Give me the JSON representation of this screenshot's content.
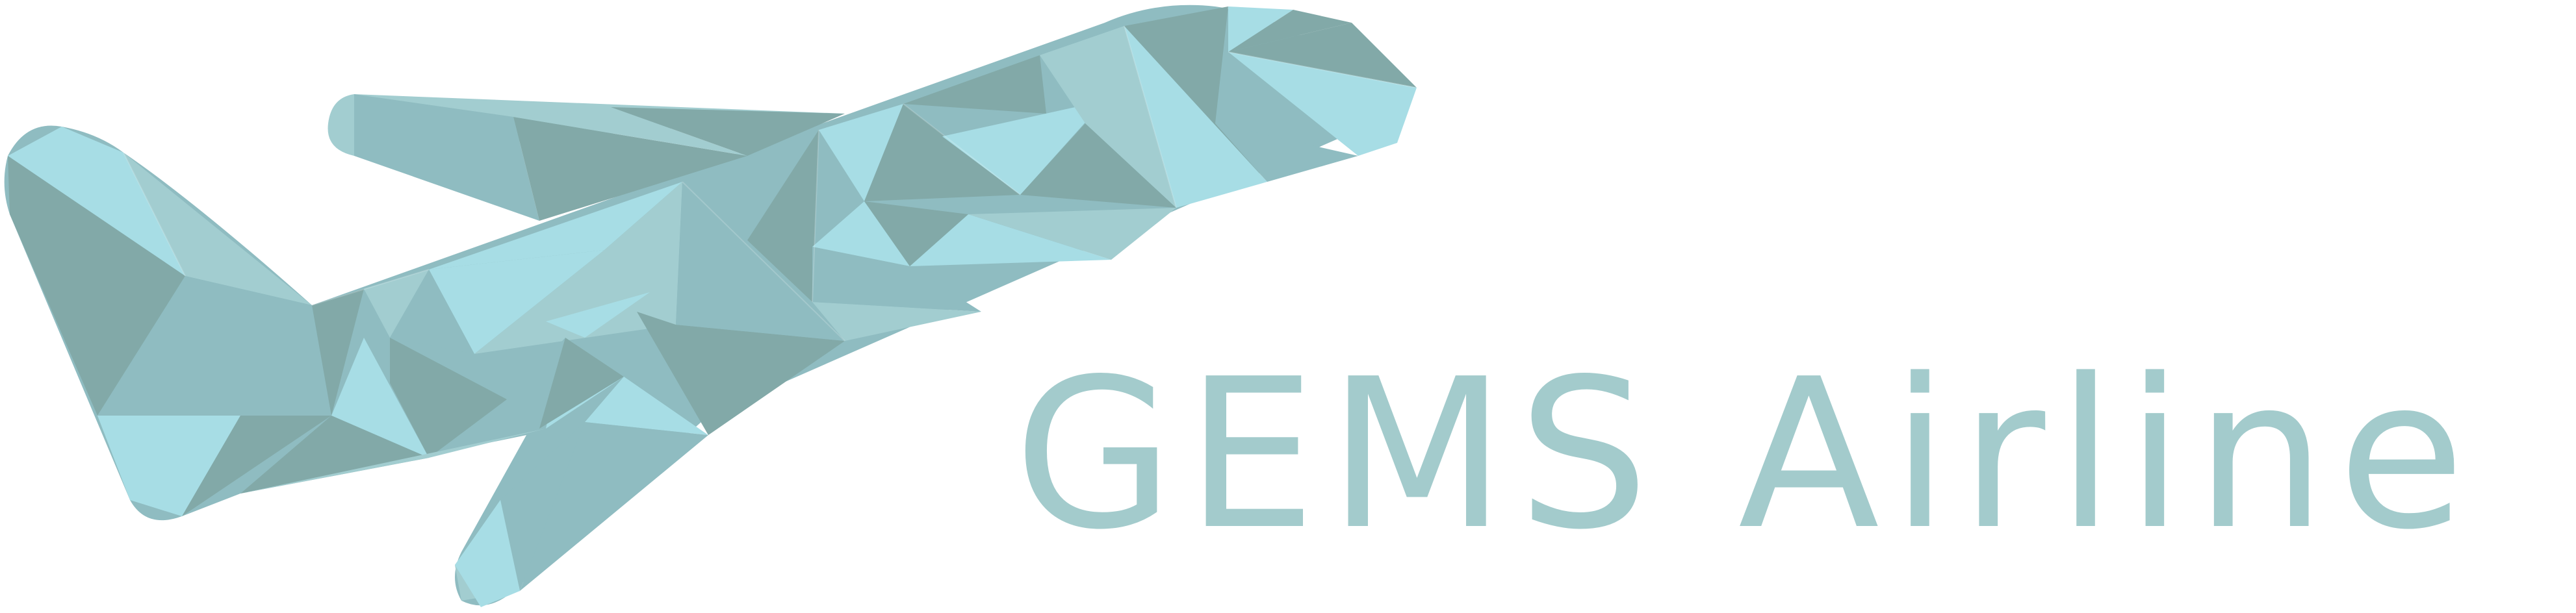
{
  "logo": {
    "brand_name": "GEMS Airline",
    "brand_color": "#a3cbcc",
    "icon": "airplane-icon"
  },
  "colors": {
    "mosaic_light": "#a7dde5",
    "mosaic_mid": "#8fbcc1",
    "mosaic_dark": "#82a9a8",
    "mosaic_pale": "#a2cdd0"
  }
}
